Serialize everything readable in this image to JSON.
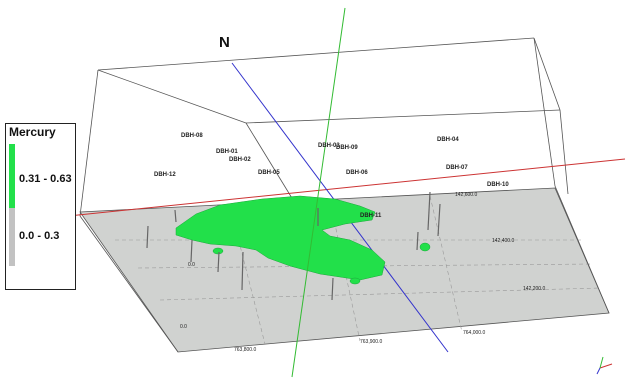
{
  "north_label": "N",
  "legend": {
    "title": "Mercury",
    "classes": [
      {
        "label": "0.31 - 0.63",
        "color": "#22e04a"
      },
      {
        "label": "0.0 - 0.3",
        "color": "#c2c2c2"
      }
    ]
  },
  "drill_holes": [
    "DBH-08",
    "DBH-01",
    "DBH-02",
    "DBH-05",
    "DBH-12",
    "DBH-03",
    "DBH-09",
    "DBH-06",
    "DBH-04",
    "DBH-07",
    "DBH-10",
    "DBH-11"
  ],
  "coordinates": [
    "142,600.0",
    "142,400.0",
    "142,200.0",
    "763,800.0",
    "763,900.0",
    "764,000.0",
    "0.0"
  ],
  "colors": {
    "orebody": "#22e04a",
    "ground_plane": "#d0d2d0",
    "north_axis": "#3333cc",
    "vertical_axis": "#33bb33",
    "east_axis": "#cc3333"
  }
}
